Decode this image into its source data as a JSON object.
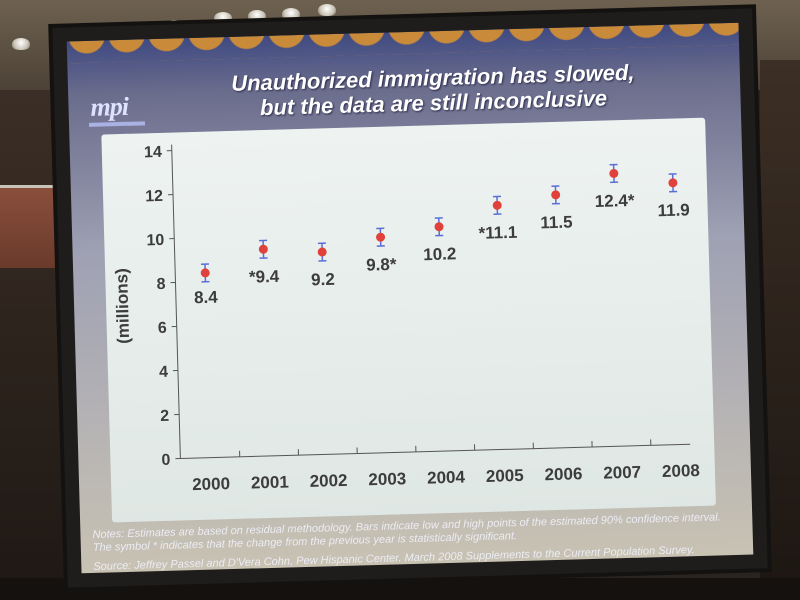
{
  "slide": {
    "logo_text": "mpi",
    "title_line1": "Unauthorized immigration has slowed,",
    "title_line2": "but the data are still inconclusive",
    "notes": "Notes: Estimates are based on residual methodology. Bars indicate low and high points of the estimated 90% confidence interval. The symbol * indicates that the change from the previous year is statistically significant.",
    "source": "Source: Jeffrey Passel and D'Vera Cohn, Pew Hispanic Center. March 2008 Supplements to the Current Population Survey."
  },
  "colors": {
    "point": "#e0413a",
    "error_bar": "#5a6fd6",
    "label": "#3c3c3c",
    "axis": "#555555"
  },
  "chart_data": {
    "type": "scatter",
    "title": "",
    "xlabel": "",
    "ylabel": "(millions)",
    "ylim": [
      0,
      14
    ],
    "yticks": [
      "0",
      "2",
      "4",
      "6",
      "8",
      "10",
      "12",
      "14"
    ],
    "categories": [
      "2000",
      "2001",
      "2002",
      "2003",
      "2004",
      "2005",
      "2006",
      "2007",
      "2008"
    ],
    "values": [
      8.4,
      9.4,
      9.2,
      9.8,
      10.2,
      11.1,
      11.5,
      12.4,
      11.9
    ],
    "low": [
      8.0,
      9.0,
      8.8,
      9.4,
      9.8,
      10.7,
      11.1,
      12.0,
      11.5
    ],
    "high": [
      8.8,
      9.8,
      9.6,
      10.2,
      10.6,
      11.5,
      11.9,
      12.8,
      12.3
    ],
    "data_labels": [
      "8.4",
      "*9.4",
      "9.2",
      "9.8*",
      "10.2",
      "*11.1",
      "11.5",
      "12.4*",
      "11.9"
    ],
    "grid": false,
    "legend": "none"
  }
}
